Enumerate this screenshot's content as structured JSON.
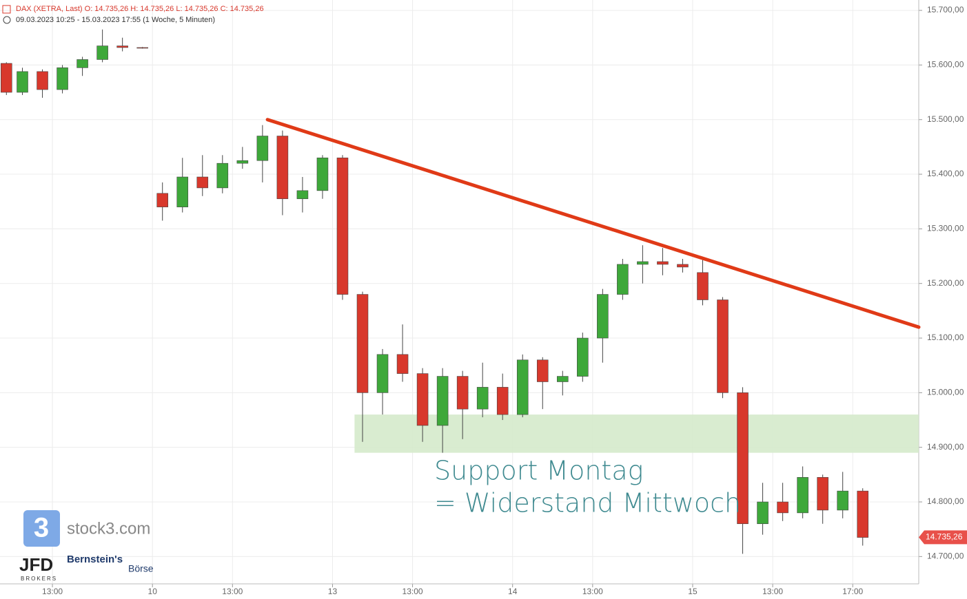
{
  "chart_data": {
    "type": "candlestick",
    "header": "DAX (XETRA, Last)  O: 14.735,26  H: 14.735,26  L: 14.735,26  C: 14.735,26",
    "subheader": "09.03.2023 10:25 - 15.03.2023 17:55  (1 Woche, 5 Minuten)",
    "x": [
      1.7,
      2.5,
      3.5,
      4.5,
      5.5,
      6.5,
      7.5,
      8.5,
      9.5,
      10.5,
      11.5,
      12.5,
      13.5,
      14.5,
      15.5,
      16.5,
      17.5,
      18.5,
      19.5,
      20.5,
      21.5,
      22.5,
      23.5,
      24.5,
      25.5,
      26.5,
      27.5,
      28.5,
      29.5,
      30.5,
      31.5,
      32.5,
      33.5,
      34.5,
      35.5,
      36.5,
      37.5,
      38.5,
      39.5,
      40.5,
      41.5,
      42.5,
      43.5,
      44.5
    ],
    "open": [
      15603,
      15550,
      15588,
      15555,
      15595,
      15610,
      15635,
      15632,
      15365,
      15340,
      15395,
      15375,
      15420,
      15425,
      15470,
      15355,
      15370,
      15430,
      15180,
      15000,
      15070,
      15035,
      14940,
      15030,
      14970,
      15010,
      14960,
      15060,
      15020,
      15030,
      15100,
      15180,
      15235,
      15240,
      15235,
      15220,
      15170,
      15000,
      14760,
      14800,
      14780,
      14845,
      14785,
      14820
    ],
    "high": [
      15605,
      15595,
      15592,
      15600,
      15615,
      15665,
      15650,
      15633,
      15385,
      15430,
      15435,
      15435,
      15450,
      15490,
      15480,
      15395,
      15435,
      15435,
      15185,
      15080,
      15125,
      15045,
      15045,
      15040,
      15055,
      15035,
      15070,
      15065,
      15040,
      15110,
      15190,
      15245,
      15270,
      15265,
      15245,
      15245,
      15175,
      15010,
      14835,
      14835,
      14865,
      14850,
      14855,
      14825
    ],
    "low": [
      15545,
      15545,
      15540,
      15548,
      15580,
      15605,
      15625,
      15630,
      15315,
      15330,
      15360,
      15365,
      15410,
      15385,
      15325,
      15330,
      15355,
      15170,
      14910,
      14960,
      15020,
      14910,
      14890,
      14915,
      14955,
      14950,
      14955,
      14970,
      14995,
      15020,
      15055,
      15170,
      15200,
      15215,
      15220,
      15160,
      14990,
      14705,
      14740,
      14765,
      14770,
      14760,
      14770,
      14720
    ],
    "close": [
      15550,
      15588,
      15555,
      15595,
      15610,
      15635,
      15632,
      15631,
      15340,
      15395,
      15375,
      15420,
      15425,
      15470,
      15355,
      15370,
      15430,
      15180,
      15000,
      15070,
      15035,
      14940,
      15030,
      14970,
      15010,
      14960,
      15060,
      15020,
      15030,
      15100,
      15180,
      15235,
      15240,
      15235,
      15230,
      15170,
      15000,
      14760,
      14800,
      14780,
      14845,
      14785,
      14820,
      14735
    ],
    "up_color": "#3ea83a",
    "down_color": "#d8382c",
    "xlim": [
      1.38,
      47.3
    ],
    "ylim": [
      14650,
      15719
    ],
    "xticks": [
      {
        "value": 4,
        "label": "13:00"
      },
      {
        "value": 9,
        "label": "10"
      },
      {
        "value": 13,
        "label": "13:00"
      },
      {
        "value": 18,
        "label": "13"
      },
      {
        "value": 22,
        "label": "13:00"
      },
      {
        "value": 27,
        "label": "14"
      },
      {
        "value": 31,
        "label": "13:00"
      },
      {
        "value": 36,
        "label": "15"
      },
      {
        "value": 40,
        "label": "13:00"
      },
      {
        "value": 44,
        "label": "17:00"
      }
    ],
    "yticks": [
      {
        "value": 14700,
        "label": "14.700,00"
      },
      {
        "value": 14800,
        "label": "14.800,00"
      },
      {
        "value": 14900,
        "label": "14.900,00"
      },
      {
        "value": 15000,
        "label": "15.000,00"
      },
      {
        "value": 15100,
        "label": "15.100,00"
      },
      {
        "value": 15200,
        "label": "15.200,00"
      },
      {
        "value": 15300,
        "label": "15.300,00"
      },
      {
        "value": 15400,
        "label": "15.400,00"
      },
      {
        "value": 15500,
        "label": "15.500,00"
      },
      {
        "value": 15600,
        "label": "15.600,00"
      },
      {
        "value": 15700,
        "label": "15.700,00"
      }
    ],
    "grid": true,
    "last_price": {
      "value": 14735.26,
      "label": "14.735,26",
      "color": "#e8504a"
    },
    "trendline": {
      "x": [
        14.75,
        47.3
      ],
      "y": [
        15500,
        15120
      ],
      "color": "#e03a17"
    },
    "zone": {
      "x": [
        19.1,
        47.3
      ],
      "y": [
        14890,
        14960
      ],
      "color": "#d5eacb"
    },
    "annotation": [
      "Support Montag",
      "= Widerstand Mittwoch"
    ],
    "annotation_color": "#3f8a90",
    "logos": {
      "stock3": "stock3.com",
      "jfd": "JFD",
      "brokers": "BROKERS",
      "bernstein": "Bernstein's",
      "boerse": "Börse"
    }
  }
}
